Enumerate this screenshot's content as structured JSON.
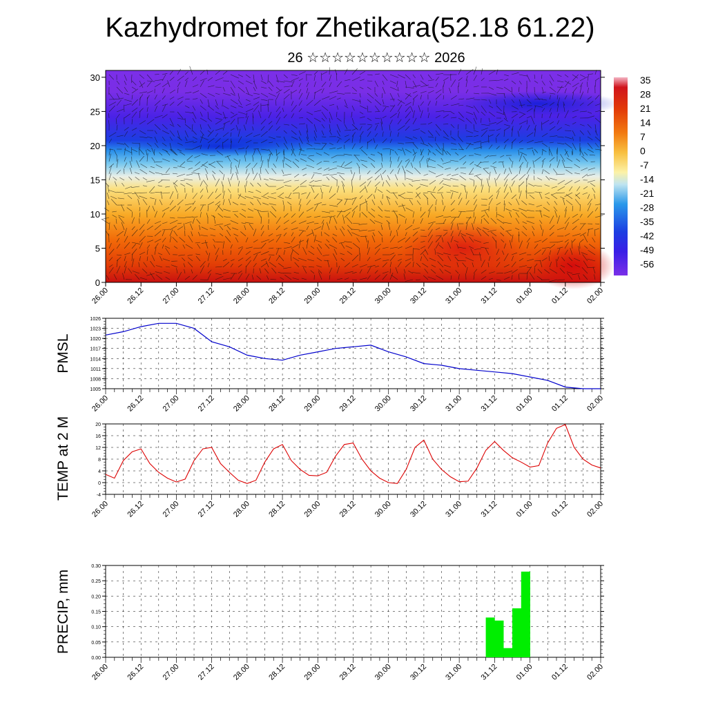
{
  "title": "Kazhydromet for Zhetikara(52.18 61.22)",
  "subtitle": "26 ☆☆☆☆☆☆☆☆☆☆ 2026",
  "time_labels": [
    "26.00",
    "26.12",
    "27.00",
    "27.12",
    "28.00",
    "28.12",
    "29.00",
    "29.12",
    "30.00",
    "30.12",
    "31.00",
    "31.12",
    "01.00",
    "01.12",
    "02.00"
  ],
  "colors": {
    "pmsl_line": "#0000cc",
    "temp_line": "#dd0000",
    "precip_bar": "#00ee00",
    "grid": "#000000"
  },
  "chart_data": [
    {
      "type": "heatmap",
      "name": "Temperature cross-section with wind field",
      "x_labels": [
        "26.00",
        "26.12",
        "27.00",
        "27.12",
        "28.00",
        "28.12",
        "29.00",
        "29.12",
        "30.00",
        "30.12",
        "31.00",
        "31.12",
        "01.00",
        "01.12",
        "02.00"
      ],
      "y_ticks": [
        0,
        5,
        10,
        15,
        20,
        25,
        30
      ],
      "ylim": [
        0,
        31
      ],
      "colorbar_labels": [
        "35",
        "28",
        "21",
        "14",
        "7",
        "0",
        "-7",
        "-14",
        "-21",
        "-28",
        "-35",
        "-42",
        "-49",
        "-56"
      ],
      "colorbar_range": [
        -60,
        38
      ]
    },
    {
      "type": "line",
      "ylabel": "PMSL",
      "ylim": [
        1005,
        1026
      ],
      "y_ticks": [
        1005,
        1008,
        1011,
        1014,
        1017,
        1020,
        1023,
        1026
      ],
      "x_hours": [
        0,
        6,
        12,
        18,
        24,
        30,
        36,
        42,
        48,
        54,
        60,
        66,
        72,
        78,
        84,
        90,
        96,
        102,
        108,
        114,
        120,
        126,
        132,
        138,
        144,
        150,
        156,
        162,
        168
      ],
      "values": [
        1021,
        1022,
        1023.5,
        1024.5,
        1024.5,
        1023,
        1019,
        1017.5,
        1015,
        1014,
        1013.5,
        1015,
        1016,
        1017,
        1017.5,
        1018,
        1016,
        1014.5,
        1012.5,
        1012,
        1011,
        1010.5,
        1010,
        1009.5,
        1008.5,
        1007.5,
        1005.5,
        1005,
        1005
      ]
    },
    {
      "type": "line",
      "ylabel": "TEMP at 2 M",
      "ylim": [
        -4,
        20
      ],
      "y_ticks": [
        -4,
        0,
        4,
        8,
        12,
        16,
        20
      ],
      "x_hours": [
        0,
        3,
        6,
        9,
        12,
        15,
        18,
        21,
        24,
        27,
        30,
        33,
        36,
        39,
        42,
        45,
        48,
        51,
        54,
        57,
        60,
        63,
        66,
        69,
        72,
        75,
        78,
        81,
        84,
        87,
        90,
        93,
        96,
        99,
        102,
        105,
        108,
        111,
        114,
        117,
        120,
        123,
        126,
        129,
        132,
        135,
        138,
        141,
        144,
        147,
        150,
        153,
        156,
        159,
        162,
        165,
        168
      ],
      "values": [
        2.8,
        1.5,
        7.5,
        10.5,
        11.5,
        6.5,
        3.5,
        1.5,
        0.2,
        1.2,
        7.5,
        11.5,
        12,
        6.5,
        3.5,
        0.8,
        -0.3,
        0.8,
        7,
        11.5,
        13,
        7.5,
        4.5,
        2.5,
        2.3,
        3.5,
        9,
        13,
        13.5,
        8,
        4,
        1.5,
        0,
        -0.3,
        4.5,
        12,
        14.5,
        8,
        4.5,
        2,
        0.3,
        0.5,
        5,
        11,
        14,
        11,
        8.5,
        7,
        5.3,
        5.8,
        13.5,
        18.5,
        19.8,
        12,
        8,
        6,
        5
      ]
    },
    {
      "type": "bar",
      "ylabel": "PRECIP, mm",
      "ylim": [
        0,
        0.3
      ],
      "y_ticks": [
        "0.00",
        "0.05",
        "0.10",
        "0.15",
        "0.20",
        "0.25",
        "0.30"
      ],
      "x_hours": [
        129,
        132,
        135,
        138,
        141
      ],
      "values": [
        0.13,
        0.12,
        0.03,
        0.16,
        0.28
      ]
    }
  ]
}
